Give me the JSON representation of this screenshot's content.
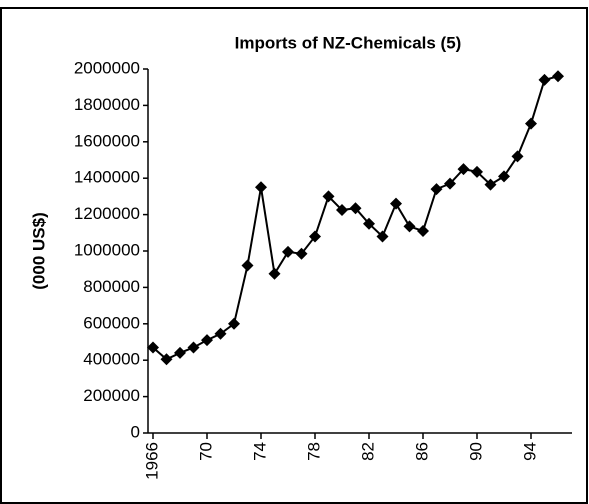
{
  "chart_data": {
    "type": "line",
    "title": "Imports of NZ-Chemicals (5)",
    "y_label": "(000 US$)",
    "x": [
      1966,
      1967,
      1968,
      1969,
      1970,
      1971,
      1972,
      1973,
      1974,
      1975,
      1976,
      1977,
      1978,
      1979,
      1980,
      1981,
      1982,
      1983,
      1984,
      1985,
      1986,
      1987,
      1988,
      1989,
      1990,
      1991,
      1992,
      1993,
      1994,
      1995,
      1996
    ],
    "series": [
      {
        "color": "#000000",
        "values": [
          470000,
          405000,
          440000,
          470000,
          510000,
          545000,
          600000,
          920000,
          1350000,
          875000,
          995000,
          985000,
          1080000,
          1300000,
          1225000,
          1235000,
          1150000,
          1080000,
          1260000,
          1135000,
          1110000,
          1340000,
          1370000,
          1450000,
          1435000,
          1365000,
          1410000,
          1520000,
          1700000,
          1940000,
          1960000
        ]
      }
    ],
    "xlim": [
      1966,
      1996
    ],
    "xticks": [
      1966,
      {
        "value": 1970,
        "label": "70"
      },
      {
        "value": 1974,
        "label": "74"
      },
      {
        "value": 1978,
        "label": "78"
      },
      {
        "value": 1982,
        "label": "82"
      },
      {
        "value": 1986,
        "label": "86"
      },
      {
        "value": 1990,
        "label": "90"
      },
      {
        "value": 1994,
        "label": "94"
      }
    ],
    "ylim": [
      0,
      2000000
    ],
    "yticks": [
      0,
      200000,
      400000,
      600000,
      800000,
      1000000,
      1200000,
      1400000,
      1600000,
      1800000,
      2000000
    ],
    "grid": false,
    "marker": "diamond"
  }
}
